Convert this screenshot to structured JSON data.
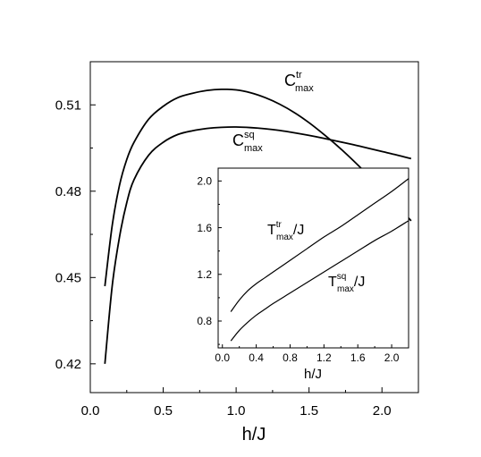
{
  "chart_data": [
    {
      "type": "line",
      "xlabel": "h/J",
      "ylabel": "",
      "xlim": [
        0.0,
        2.25
      ],
      "ylim": [
        0.41,
        0.525
      ],
      "x_ticks": [
        0.0,
        0.5,
        1.0,
        1.5,
        2.0
      ],
      "x_tick_labels": [
        "0.0",
        "0.5",
        "1.0",
        "1.5",
        "2.0"
      ],
      "y_ticks": [
        0.42,
        0.45,
        0.48,
        0.51
      ],
      "y_tick_labels": [
        "0.42",
        "0.45",
        "0.48",
        "0.51"
      ],
      "grid": false,
      "legend": "none",
      "series": [
        {
          "name": "C^tr_max",
          "label_main": "C",
          "label_sup": "tr",
          "label_sub": "max",
          "x": [
            0.1,
            0.15,
            0.2,
            0.25,
            0.3,
            0.4,
            0.5,
            0.6,
            0.7,
            0.8,
            0.9,
            1.0,
            1.1,
            1.2,
            1.3,
            1.4,
            1.5,
            1.6,
            1.7,
            1.8,
            1.9,
            2.0,
            2.1,
            2.2
          ],
          "y": [
            0.447,
            0.468,
            0.482,
            0.491,
            0.497,
            0.505,
            0.5095,
            0.5125,
            0.514,
            0.515,
            0.5154,
            0.5152,
            0.5142,
            0.5125,
            0.5102,
            0.5073,
            0.5038,
            0.4998,
            0.4955,
            0.4908,
            0.4858,
            0.4806,
            0.4752,
            0.4697
          ]
        },
        {
          "name": "C^sq_max",
          "label_main": "C",
          "label_sup": "sq",
          "label_sub": "max",
          "x": [
            0.1,
            0.15,
            0.2,
            0.25,
            0.3,
            0.4,
            0.5,
            0.6,
            0.7,
            0.8,
            0.9,
            1.0,
            1.1,
            1.2,
            1.3,
            1.4,
            1.5,
            1.6,
            1.7,
            1.8,
            1.9,
            2.0,
            2.1,
            2.2
          ],
          "y": [
            0.42,
            0.447,
            0.464,
            0.476,
            0.484,
            0.4925,
            0.497,
            0.4997,
            0.501,
            0.5018,
            0.5022,
            0.5023,
            0.5021,
            0.5017,
            0.5011,
            0.5003,
            0.4994,
            0.4984,
            0.4973,
            0.4962,
            0.495,
            0.4938,
            0.4926,
            0.4913
          ]
        }
      ]
    },
    {
      "type": "line",
      "xlabel": "h/J",
      "ylabel": "",
      "xlim": [
        -0.05,
        2.2
      ],
      "ylim": [
        0.57,
        2.11
      ],
      "x_ticks": [
        0.0,
        0.4,
        0.8,
        1.2,
        1.6,
        2.0
      ],
      "x_tick_labels": [
        "0.0",
        "0.4",
        "0.8",
        "1.2",
        "1.6",
        "2.0"
      ],
      "y_ticks": [
        0.8,
        1.2,
        1.6,
        2.0
      ],
      "y_tick_labels": [
        "0.8",
        "1.2",
        "1.6",
        "2.0"
      ],
      "grid": false,
      "legend": "none",
      "series": [
        {
          "name": "T^tr_max/J",
          "label_main": "T",
          "label_sup": "tr",
          "label_sub": "max",
          "label_suffix": "/J",
          "x": [
            0.1,
            0.2,
            0.3,
            0.4,
            0.5,
            0.6,
            0.8,
            1.0,
            1.2,
            1.4,
            1.6,
            1.8,
            2.0,
            2.2
          ],
          "y": [
            0.88,
            0.98,
            1.06,
            1.12,
            1.17,
            1.22,
            1.32,
            1.42,
            1.52,
            1.61,
            1.71,
            1.81,
            1.91,
            2.02
          ]
        },
        {
          "name": "T^sq_max/J",
          "label_main": "T",
          "label_sup": "sq",
          "label_sub": "max",
          "label_suffix": "/J",
          "x": [
            0.1,
            0.2,
            0.3,
            0.4,
            0.5,
            0.6,
            0.8,
            1.0,
            1.2,
            1.4,
            1.6,
            1.8,
            2.0,
            2.2
          ],
          "y": [
            0.63,
            0.72,
            0.79,
            0.85,
            0.9,
            0.95,
            1.04,
            1.13,
            1.22,
            1.31,
            1.4,
            1.49,
            1.57,
            1.66
          ]
        }
      ]
    }
  ]
}
